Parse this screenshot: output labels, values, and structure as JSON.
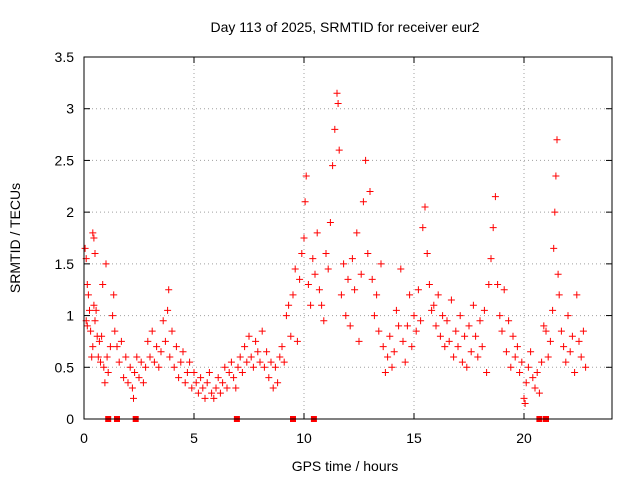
{
  "chart_data": {
    "type": "scatter",
    "title": "Day 113 of 2025, SRMTID for receiver eur2",
    "xlabel": "GPS time / hours",
    "ylabel": "SRMTID / TECUs",
    "xlim": [
      0,
      24
    ],
    "ylim": [
      0,
      3.5
    ],
    "x_ticks": [
      0,
      5,
      10,
      15,
      20
    ],
    "x_tick_labels": [
      "0",
      "5",
      "10",
      "15",
      "20"
    ],
    "y_ticks": [
      0,
      0.5,
      1,
      1.5,
      2,
      2.5,
      3,
      3.5
    ],
    "y_tick_labels": [
      "0",
      "0.5",
      "1",
      "1.5",
      "2",
      "2.5",
      "3",
      "3.5"
    ],
    "grid": true,
    "marker": "plus",
    "color": "#ff0000",
    "series": [
      {
        "name": "SRMTID",
        "points": [
          [
            0.05,
            1.65
          ],
          [
            0.1,
            1.55
          ],
          [
            0.15,
            1.3
          ],
          [
            0.2,
            1.2
          ],
          [
            0.1,
            0.95
          ],
          [
            0.15,
            0.9
          ],
          [
            0.25,
            1.05
          ],
          [
            0.3,
            0.85
          ],
          [
            0.35,
            0.6
          ],
          [
            0.4,
            0.7
          ],
          [
            0.45,
            1.1
          ],
          [
            0.5,
            0.95
          ],
          [
            0.4,
            1.8
          ],
          [
            0.45,
            1.75
          ],
          [
            0.5,
            1.6
          ],
          [
            0.55,
            1.05
          ],
          [
            0.6,
            0.8
          ],
          [
            0.65,
            0.6
          ],
          [
            0.7,
            0.75
          ],
          [
            0.75,
            0.55
          ],
          [
            0.8,
            0.8
          ],
          [
            0.85,
            1.3
          ],
          [
            0.9,
            0.5
          ],
          [
            0.95,
            0.35
          ],
          [
            1.0,
            1.5
          ],
          [
            1.05,
            0.6
          ],
          [
            1.1,
            0.45
          ],
          [
            1.2,
            0.7
          ],
          [
            1.3,
            1.0
          ],
          [
            1.35,
            1.2
          ],
          [
            1.4,
            0.85
          ],
          [
            1.5,
            0.7
          ],
          [
            1.6,
            0.55
          ],
          [
            1.7,
            0.75
          ],
          [
            1.8,
            0.4
          ],
          [
            1.9,
            0.6
          ],
          [
            2.0,
            0.35
          ],
          [
            2.1,
            0.5
          ],
          [
            2.2,
            0.3
          ],
          [
            2.25,
            0.2
          ],
          [
            2.3,
            0.45
          ],
          [
            2.4,
            0.6
          ],
          [
            2.5,
            0.4
          ],
          [
            2.6,
            0.55
          ],
          [
            2.7,
            0.35
          ],
          [
            2.8,
            0.5
          ],
          [
            2.9,
            0.75
          ],
          [
            3.0,
            0.6
          ],
          [
            3.1,
            0.85
          ],
          [
            3.2,
            0.55
          ],
          [
            3.3,
            0.7
          ],
          [
            3.4,
            0.5
          ],
          [
            3.5,
            0.65
          ],
          [
            3.6,
            0.95
          ],
          [
            3.7,
            0.75
          ],
          [
            3.8,
            1.05
          ],
          [
            3.85,
            1.25
          ],
          [
            3.9,
            0.6
          ],
          [
            4.0,
            0.85
          ],
          [
            4.1,
            0.5
          ],
          [
            4.2,
            0.7
          ],
          [
            4.3,
            0.4
          ],
          [
            4.4,
            0.55
          ],
          [
            4.5,
            0.65
          ],
          [
            4.6,
            0.35
          ],
          [
            4.7,
            0.45
          ],
          [
            4.8,
            0.55
          ],
          [
            4.9,
            0.3
          ],
          [
            5.0,
            0.45
          ],
          [
            5.1,
            0.35
          ],
          [
            5.2,
            0.25
          ],
          [
            5.3,
            0.4
          ],
          [
            5.4,
            0.3
          ],
          [
            5.5,
            0.2
          ],
          [
            5.6,
            0.35
          ],
          [
            5.7,
            0.45
          ],
          [
            5.8,
            0.25
          ],
          [
            5.9,
            0.2
          ],
          [
            6.0,
            0.3
          ],
          [
            6.1,
            0.4
          ],
          [
            6.2,
            0.25
          ],
          [
            6.3,
            0.35
          ],
          [
            6.4,
            0.5
          ],
          [
            6.5,
            0.3
          ],
          [
            6.6,
            0.45
          ],
          [
            6.7,
            0.55
          ],
          [
            6.8,
            0.4
          ],
          [
            6.9,
            0.3
          ],
          [
            7.0,
            0.5
          ],
          [
            7.1,
            0.6
          ],
          [
            7.2,
            0.45
          ],
          [
            7.3,
            0.7
          ],
          [
            7.4,
            0.55
          ],
          [
            7.5,
            0.8
          ],
          [
            7.6,
            0.6
          ],
          [
            7.7,
            0.5
          ],
          [
            7.8,
            0.75
          ],
          [
            7.9,
            0.65
          ],
          [
            8.0,
            0.55
          ],
          [
            8.1,
            0.85
          ],
          [
            8.2,
            0.5
          ],
          [
            8.3,
            0.65
          ],
          [
            8.4,
            0.4
          ],
          [
            8.5,
            0.55
          ],
          [
            8.6,
            0.3
          ],
          [
            8.7,
            0.5
          ],
          [
            8.8,
            0.35
          ],
          [
            8.9,
            0.6
          ],
          [
            9.0,
            0.7
          ],
          [
            9.1,
            0.55
          ],
          [
            9.2,
            1.0
          ],
          [
            9.3,
            1.1
          ],
          [
            9.4,
            0.8
          ],
          [
            9.5,
            1.2
          ],
          [
            9.6,
            1.45
          ],
          [
            9.7,
            0.75
          ],
          [
            9.8,
            1.35
          ],
          [
            9.9,
            1.6
          ],
          [
            10.0,
            1.75
          ],
          [
            10.05,
            2.1
          ],
          [
            10.1,
            2.35
          ],
          [
            10.2,
            1.3
          ],
          [
            10.3,
            1.1
          ],
          [
            10.4,
            1.55
          ],
          [
            10.5,
            1.4
          ],
          [
            10.6,
            1.8
          ],
          [
            10.7,
            1.25
          ],
          [
            10.8,
            1.1
          ],
          [
            10.9,
            0.95
          ],
          [
            11.0,
            1.6
          ],
          [
            11.1,
            1.45
          ],
          [
            11.2,
            1.9
          ],
          [
            11.3,
            2.45
          ],
          [
            11.4,
            2.8
          ],
          [
            11.5,
            3.15
          ],
          [
            11.55,
            3.05
          ],
          [
            11.6,
            2.6
          ],
          [
            11.7,
            1.2
          ],
          [
            11.8,
            1.5
          ],
          [
            11.9,
            1.0
          ],
          [
            12.0,
            1.35
          ],
          [
            12.1,
            0.9
          ],
          [
            12.2,
            1.55
          ],
          [
            12.3,
            1.25
          ],
          [
            12.4,
            1.8
          ],
          [
            12.5,
            0.75
          ],
          [
            12.6,
            1.4
          ],
          [
            12.7,
            2.1
          ],
          [
            12.8,
            2.5
          ],
          [
            12.9,
            1.6
          ],
          [
            13.0,
            2.2
          ],
          [
            13.1,
            1.35
          ],
          [
            13.2,
            1.0
          ],
          [
            13.3,
            1.2
          ],
          [
            13.4,
            0.85
          ],
          [
            13.5,
            1.5
          ],
          [
            13.6,
            0.7
          ],
          [
            13.7,
            0.45
          ],
          [
            13.8,
            0.6
          ],
          [
            13.9,
            0.8
          ],
          [
            14.0,
            0.5
          ],
          [
            14.1,
            0.65
          ],
          [
            14.2,
            1.05
          ],
          [
            14.3,
            0.9
          ],
          [
            14.4,
            1.45
          ],
          [
            14.5,
            0.75
          ],
          [
            14.6,
            0.55
          ],
          [
            14.7,
            0.9
          ],
          [
            14.8,
            1.2
          ],
          [
            14.9,
            0.7
          ],
          [
            15.0,
            1.0
          ],
          [
            15.1,
            0.85
          ],
          [
            15.2,
            1.25
          ],
          [
            15.3,
            0.95
          ],
          [
            15.4,
            1.85
          ],
          [
            15.5,
            2.05
          ],
          [
            15.6,
            1.6
          ],
          [
            15.7,
            1.3
          ],
          [
            15.8,
            1.05
          ],
          [
            15.9,
            1.1
          ],
          [
            16.0,
            0.9
          ],
          [
            16.1,
            1.2
          ],
          [
            16.2,
            0.8
          ],
          [
            16.3,
            1.0
          ],
          [
            16.4,
            0.7
          ],
          [
            16.5,
            0.95
          ],
          [
            16.6,
            0.75
          ],
          [
            16.7,
            1.15
          ],
          [
            16.8,
            0.6
          ],
          [
            16.9,
            0.85
          ],
          [
            17.0,
            0.7
          ],
          [
            17.1,
            1.0
          ],
          [
            17.2,
            0.55
          ],
          [
            17.3,
            0.8
          ],
          [
            17.4,
            0.5
          ],
          [
            17.5,
            0.9
          ],
          [
            17.6,
            0.65
          ],
          [
            17.7,
            1.1
          ],
          [
            17.8,
            0.8
          ],
          [
            17.9,
            0.6
          ],
          [
            18.0,
            0.95
          ],
          [
            18.1,
            0.7
          ],
          [
            18.2,
            1.05
          ],
          [
            18.3,
            0.45
          ],
          [
            18.4,
            1.3
          ],
          [
            18.5,
            1.55
          ],
          [
            18.6,
            1.85
          ],
          [
            18.7,
            2.15
          ],
          [
            18.8,
            1.3
          ],
          [
            18.9,
            1.0
          ],
          [
            19.0,
            0.85
          ],
          [
            19.1,
            1.25
          ],
          [
            19.2,
            0.65
          ],
          [
            19.3,
            0.95
          ],
          [
            19.4,
            0.5
          ],
          [
            19.5,
            0.8
          ],
          [
            19.6,
            0.6
          ],
          [
            19.7,
            0.7
          ],
          [
            19.8,
            0.45
          ],
          [
            19.9,
            0.55
          ],
          [
            20.0,
            0.2
          ],
          [
            20.05,
            0.15
          ],
          [
            20.1,
            0.35
          ],
          [
            20.2,
            0.5
          ],
          [
            20.3,
            0.65
          ],
          [
            20.4,
            0.4
          ],
          [
            20.5,
            0.3
          ],
          [
            20.6,
            0.45
          ],
          [
            20.7,
            0.25
          ],
          [
            20.8,
            0.55
          ],
          [
            20.9,
            0.9
          ],
          [
            21.0,
            0.85
          ],
          [
            21.1,
            0.6
          ],
          [
            21.2,
            0.75
          ],
          [
            21.3,
            1.05
          ],
          [
            21.35,
            1.65
          ],
          [
            21.4,
            2.0
          ],
          [
            21.45,
            2.35
          ],
          [
            21.5,
            2.7
          ],
          [
            21.55,
            1.4
          ],
          [
            21.6,
            1.2
          ],
          [
            21.7,
            0.85
          ],
          [
            21.8,
            0.7
          ],
          [
            21.9,
            0.55
          ],
          [
            22.0,
            1.0
          ],
          [
            22.1,
            0.65
          ],
          [
            22.2,
            0.8
          ],
          [
            22.3,
            0.45
          ],
          [
            22.4,
            1.2
          ],
          [
            22.5,
            0.75
          ],
          [
            22.6,
            0.6
          ],
          [
            22.7,
            0.85
          ],
          [
            22.8,
            0.5
          ]
        ]
      }
    ],
    "zero_markers_x": [
      1.1,
      1.5,
      2.35,
      6.95,
      9.5,
      10.45,
      20.7,
      21.0
    ]
  }
}
